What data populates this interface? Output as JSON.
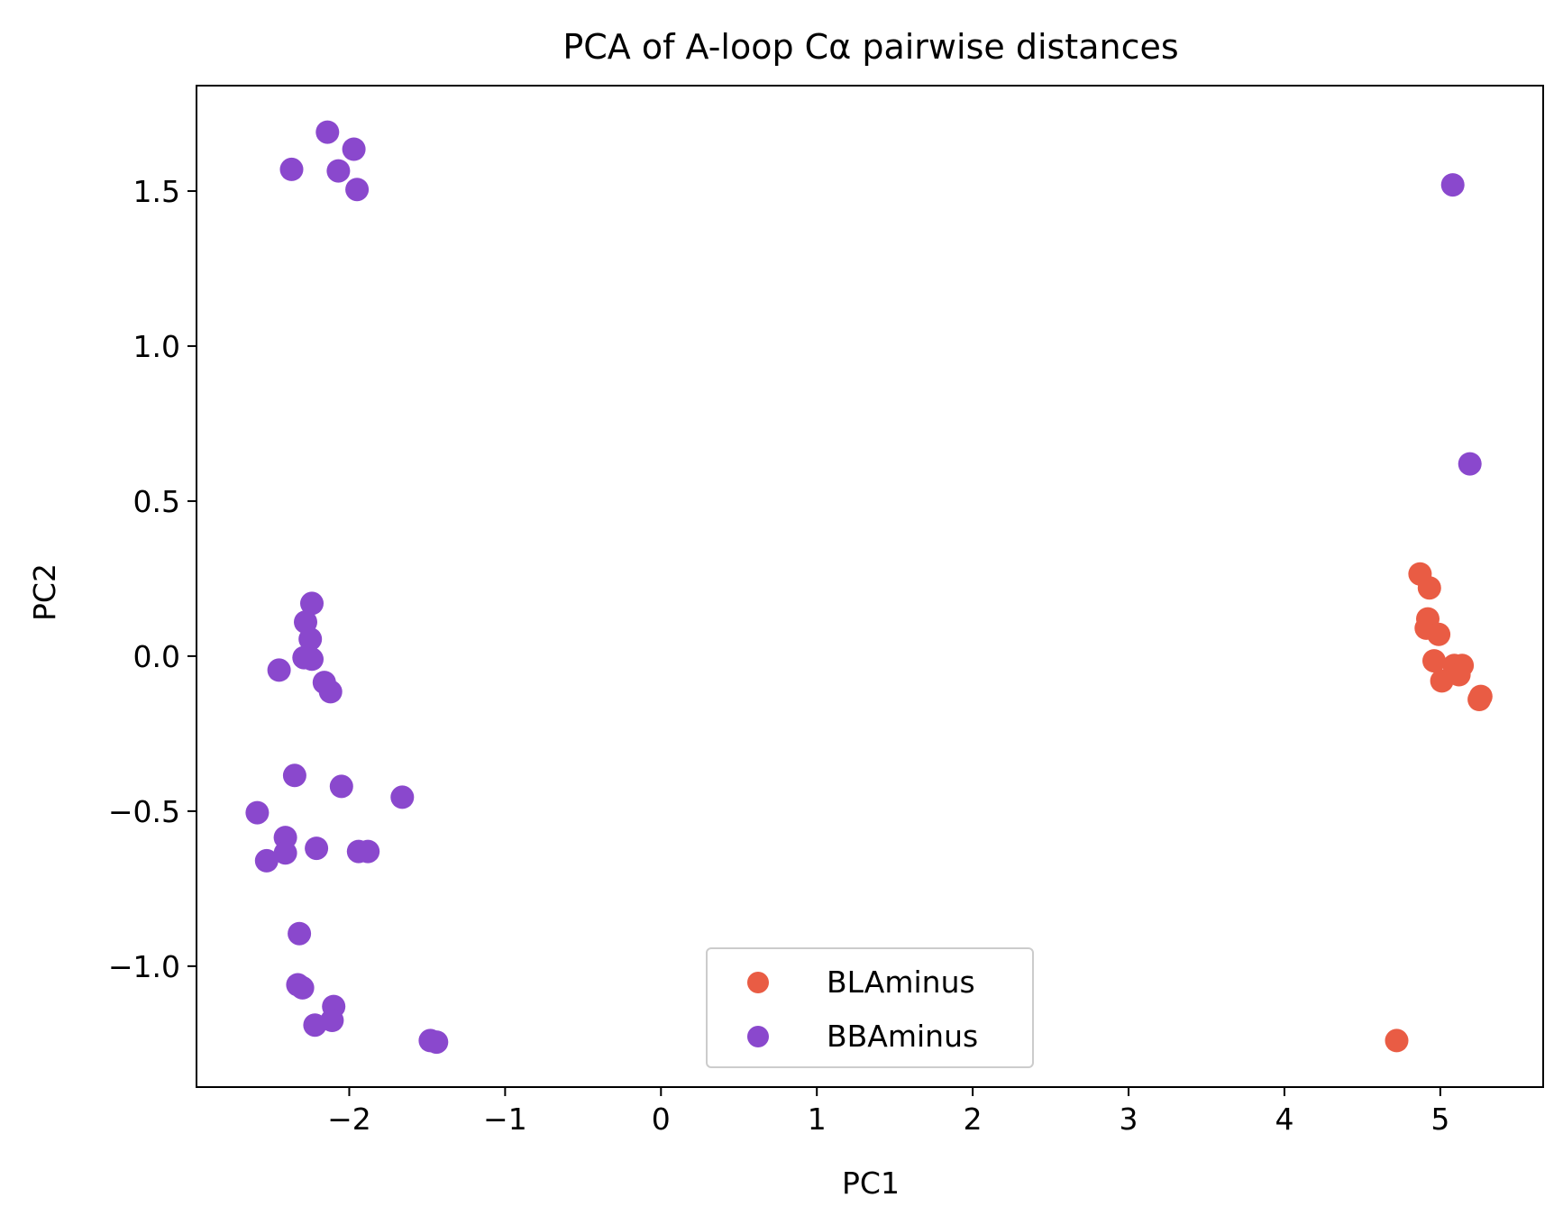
{
  "chart_data": {
    "type": "scatter",
    "title": "PCA of A-loop Cα pairwise distances",
    "xlabel": "PC1",
    "ylabel": "PC2",
    "xlim": [
      -2.98,
      5.66
    ],
    "ylim": [
      -1.39,
      1.84
    ],
    "xticks": [
      -2,
      -1,
      0,
      1,
      2,
      3,
      4,
      5
    ],
    "xtick_labels": [
      "−2",
      "−1",
      "0",
      "1",
      "2",
      "3",
      "4",
      "5"
    ],
    "yticks": [
      -1.0,
      -0.5,
      0.0,
      0.5,
      1.0,
      1.5
    ],
    "ytick_labels": [
      "−1.0",
      "−0.5",
      "0.0",
      "0.5",
      "1.0",
      "1.5"
    ],
    "grid": false,
    "legend_position": "lower-center",
    "series": [
      {
        "name": "BLAminus",
        "color": "#e95c44",
        "points": [
          [
            4.87,
            0.265
          ],
          [
            4.93,
            0.22
          ],
          [
            4.92,
            0.12
          ],
          [
            4.91,
            0.09
          ],
          [
            4.99,
            0.07
          ],
          [
            4.96,
            -0.015
          ],
          [
            5.09,
            -0.03
          ],
          [
            5.14,
            -0.03
          ],
          [
            5.12,
            -0.06
          ],
          [
            5.01,
            -0.08
          ],
          [
            5.26,
            -0.13
          ],
          [
            5.25,
            -0.14
          ],
          [
            4.72,
            -1.24
          ]
        ]
      },
      {
        "name": "BBAminus",
        "color": "#8a48cd",
        "points": [
          [
            -2.14,
            1.69
          ],
          [
            -1.97,
            1.635
          ],
          [
            -2.37,
            1.57
          ],
          [
            -2.07,
            1.565
          ],
          [
            -1.95,
            1.505
          ],
          [
            5.08,
            1.52
          ],
          [
            5.19,
            0.62
          ],
          [
            -2.24,
            0.17
          ],
          [
            -2.28,
            0.11
          ],
          [
            -2.25,
            0.055
          ],
          [
            -2.29,
            -0.005
          ],
          [
            -2.24,
            -0.01
          ],
          [
            -2.45,
            -0.045
          ],
          [
            -2.16,
            -0.085
          ],
          [
            -2.12,
            -0.115
          ],
          [
            -2.35,
            -0.385
          ],
          [
            -2.05,
            -0.42
          ],
          [
            -1.66,
            -0.455
          ],
          [
            -2.59,
            -0.505
          ],
          [
            -2.41,
            -0.585
          ],
          [
            -2.21,
            -0.62
          ],
          [
            -1.94,
            -0.63
          ],
          [
            -1.88,
            -0.63
          ],
          [
            -2.41,
            -0.635
          ],
          [
            -2.53,
            -0.66
          ],
          [
            -2.32,
            -0.895
          ],
          [
            -2.33,
            -1.06
          ],
          [
            -2.3,
            -1.07
          ],
          [
            -2.1,
            -1.13
          ],
          [
            -2.11,
            -1.175
          ],
          [
            -2.22,
            -1.19
          ],
          [
            -1.48,
            -1.24
          ],
          [
            -1.44,
            -1.245
          ]
        ]
      }
    ]
  }
}
